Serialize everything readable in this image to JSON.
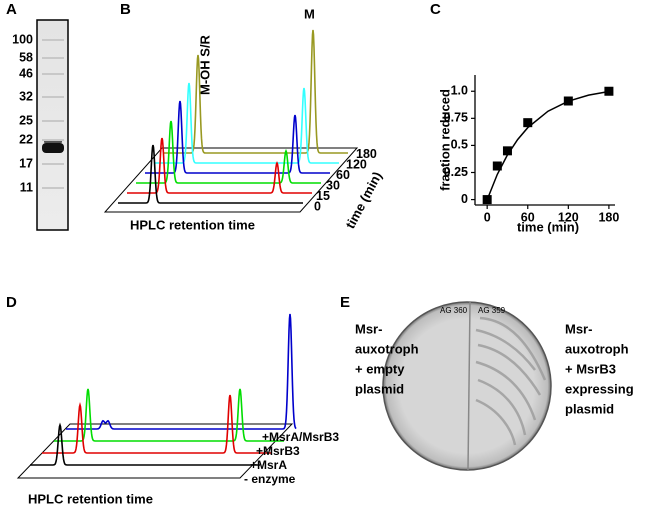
{
  "panel_labels": [
    "A",
    "B",
    "C",
    "D",
    "E"
  ],
  "gel": {
    "markers": [
      "100",
      "58",
      "46",
      "32",
      "25",
      "22",
      "17",
      "11"
    ]
  },
  "hplc_time": {
    "peak_labels": [
      "M-OH S/R",
      "M"
    ],
    "time_label": "time (min)",
    "times": [
      180,
      120,
      60,
      30,
      15,
      0
    ],
    "x_label": "HPLC retention time"
  },
  "chart_data": {
    "type": "scatter",
    "x": [
      0,
      15,
      30,
      60,
      120,
      180
    ],
    "values": [
      0,
      0.31,
      0.45,
      0.71,
      0.91,
      1.0
    ],
    "color": "#000000",
    "fit": {
      "x": [
        0,
        15,
        30,
        45,
        60,
        90,
        120,
        150,
        180
      ],
      "values": [
        0,
        0.232,
        0.413,
        0.554,
        0.664,
        0.816,
        0.908,
        0.964,
        0.998
      ]
    },
    "x_label": "time (min)",
    "y_label": "fraction reduced",
    "xlim": [
      -18,
      189
    ],
    "ylim": [
      -0.05,
      1.15
    ],
    "xticks": [
      0,
      60,
      120,
      180
    ],
    "yticks": [
      0,
      0.25,
      0.5,
      0.75,
      {
        "value": 1,
        "label": "1.0"
      }
    ]
  },
  "hplc_enzyme": {
    "conditions": [
      "+MsrA/MsrB3",
      "+MsrB3",
      "+MsrA",
      "- enzyme"
    ],
    "x_label": "HPLC retention time"
  },
  "plate": {
    "left_text": [
      "Msr-",
      "auxotroph",
      "+ empty",
      "plasmid"
    ],
    "right_text": [
      "Msr-",
      "auxotroph",
      "+ MsrB3",
      "expressing",
      "plasmid"
    ],
    "lid_labels": [
      "AG 360",
      "AG 359"
    ]
  }
}
